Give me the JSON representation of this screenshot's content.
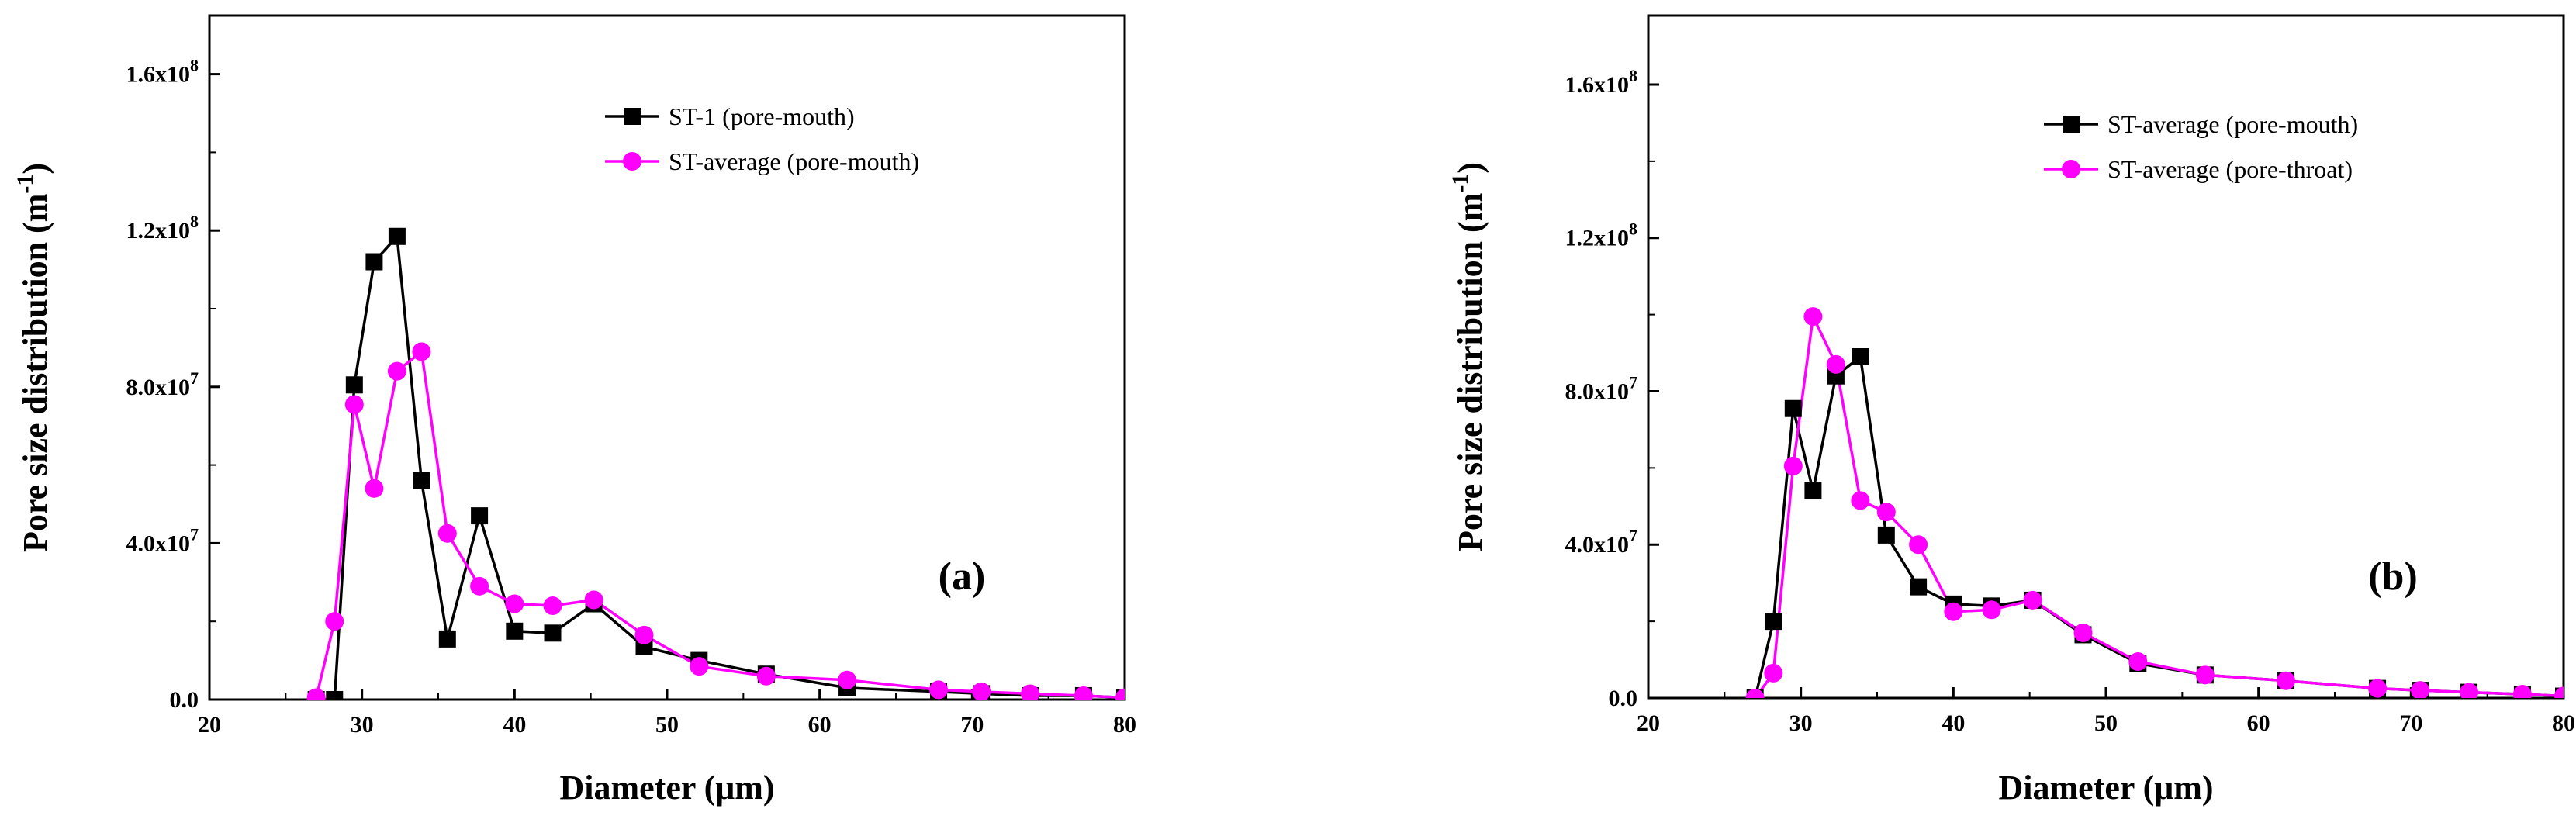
{
  "chart_data": [
    {
      "type": "line",
      "panel_label": "(a)",
      "xlabel": "Diameter (μm)",
      "ylabel_main": "Pore size distribution (m",
      "ylabel_exp": "-1",
      "ylabel_close": ")",
      "xlim": [
        20,
        80
      ],
      "ylim": [
        0,
        175000000
      ],
      "xticks": [
        20,
        30,
        40,
        50,
        60,
        70,
        80
      ],
      "xtick_labels": [
        "20",
        "30",
        "40",
        "50",
        "60",
        "70",
        "80"
      ],
      "yticks": [
        0,
        40000000,
        80000000,
        120000000,
        160000000
      ],
      "ytick_labels": [
        {
          "mant": "0.0",
          "exp": ""
        },
        {
          "mant": "4.0x10",
          "exp": "7"
        },
        {
          "mant": "8.0x10",
          "exp": "7"
        },
        {
          "mant": "1.2x10",
          "exp": "8"
        },
        {
          "mant": "1.6x10",
          "exp": "8"
        }
      ],
      "legend_position": "top-right",
      "series": [
        {
          "name": "ST-1 (pore-mouth)",
          "color": "#000000",
          "marker": "square",
          "points": [
            [
              27.0,
              0
            ],
            [
              28.2,
              0
            ],
            [
              29.5,
              80500000
            ],
            [
              30.8,
              112000000
            ],
            [
              32.3,
              118500000
            ],
            [
              33.9,
              56000000
            ],
            [
              35.6,
              15500000
            ],
            [
              37.7,
              47000000
            ],
            [
              40.0,
              17500000
            ],
            [
              42.5,
              17000000
            ],
            [
              45.2,
              24500000
            ],
            [
              48.5,
              13500000
            ],
            [
              52.1,
              10000000
            ],
            [
              56.5,
              6500000
            ],
            [
              61.8,
              3000000
            ],
            [
              67.8,
              2000000
            ],
            [
              70.6,
              1500000
            ],
            [
              73.8,
              1000000
            ],
            [
              77.3,
              1000000
            ],
            [
              80.0,
              500000
            ]
          ]
        },
        {
          "name": "ST-average (pore-mouth)",
          "color": "#ff00ff",
          "marker": "circle",
          "points": [
            [
              27.0,
              500000
            ],
            [
              28.2,
              20000000
            ],
            [
              29.5,
              75500000
            ],
            [
              30.8,
              54000000
            ],
            [
              32.3,
              84000000
            ],
            [
              33.9,
              89000000
            ],
            [
              35.6,
              42500000
            ],
            [
              37.7,
              29000000
            ],
            [
              40.0,
              24500000
            ],
            [
              42.5,
              24000000
            ],
            [
              45.2,
              25500000
            ],
            [
              48.5,
              16500000
            ],
            [
              52.1,
              8500000
            ],
            [
              56.5,
              6000000
            ],
            [
              61.8,
              5000000
            ],
            [
              67.8,
              2500000
            ],
            [
              70.6,
              2000000
            ],
            [
              73.8,
              1500000
            ],
            [
              77.3,
              1000000
            ],
            [
              80.0,
              500000
            ]
          ]
        }
      ]
    },
    {
      "type": "line",
      "panel_label": "(b)",
      "xlabel": "Diameter (μm)",
      "ylabel_main": "Pore size distribution (m",
      "ylabel_exp": "-1",
      "ylabel_close": ")",
      "xlim": [
        20,
        80
      ],
      "ylim": [
        0,
        178000000
      ],
      "xticks": [
        20,
        30,
        40,
        50,
        60,
        70,
        80
      ],
      "xtick_labels": [
        "20",
        "30",
        "40",
        "50",
        "60",
        "70",
        "80"
      ],
      "yticks": [
        0,
        40000000,
        80000000,
        120000000,
        160000000
      ],
      "ytick_labels": [
        {
          "mant": "0.0",
          "exp": ""
        },
        {
          "mant": "4.0x10",
          "exp": "7"
        },
        {
          "mant": "8.0x10",
          "exp": "7"
        },
        {
          "mant": "1.2x10",
          "exp": "8"
        },
        {
          "mant": "1.6x10",
          "exp": "8"
        }
      ],
      "legend_position": "top-right",
      "series": [
        {
          "name": "ST-average (pore-mouth)",
          "color": "#000000",
          "marker": "square",
          "points": [
            [
              27.0,
              0
            ],
            [
              28.2,
              20000000
            ],
            [
              29.5,
              75500000
            ],
            [
              30.8,
              54000000
            ],
            [
              32.3,
              84000000
            ],
            [
              33.9,
              89000000
            ],
            [
              35.6,
              42500000
            ],
            [
              37.7,
              29000000
            ],
            [
              40.0,
              24500000
            ],
            [
              42.5,
              24000000
            ],
            [
              45.2,
              25500000
            ],
            [
              48.5,
              16500000
            ],
            [
              52.1,
              9000000
            ],
            [
              56.5,
              6000000
            ],
            [
              61.8,
              4500000
            ],
            [
              67.8,
              2500000
            ],
            [
              70.6,
              2000000
            ],
            [
              73.8,
              1500000
            ],
            [
              77.3,
              1000000
            ],
            [
              80.0,
              500000
            ]
          ]
        },
        {
          "name": "ST-average (pore-throat)",
          "color": "#ff00ff",
          "marker": "circle",
          "points": [
            [
              27.0,
              0
            ],
            [
              28.2,
              6500000
            ],
            [
              29.5,
              60500000
            ],
            [
              30.8,
              99500000
            ],
            [
              32.3,
              87000000
            ],
            [
              33.9,
              51500000
            ],
            [
              35.6,
              48500000
            ],
            [
              37.7,
              40000000
            ],
            [
              40.0,
              22500000
            ],
            [
              42.5,
              23000000
            ],
            [
              45.2,
              25500000
            ],
            [
              48.5,
              17000000
            ],
            [
              52.1,
              9500000
            ],
            [
              56.5,
              6000000
            ],
            [
              61.8,
              4500000
            ],
            [
              67.8,
              2500000
            ],
            [
              70.6,
              2000000
            ],
            [
              73.8,
              1500000
            ],
            [
              77.3,
              1000000
            ],
            [
              80.0,
              500000
            ]
          ]
        }
      ]
    }
  ]
}
